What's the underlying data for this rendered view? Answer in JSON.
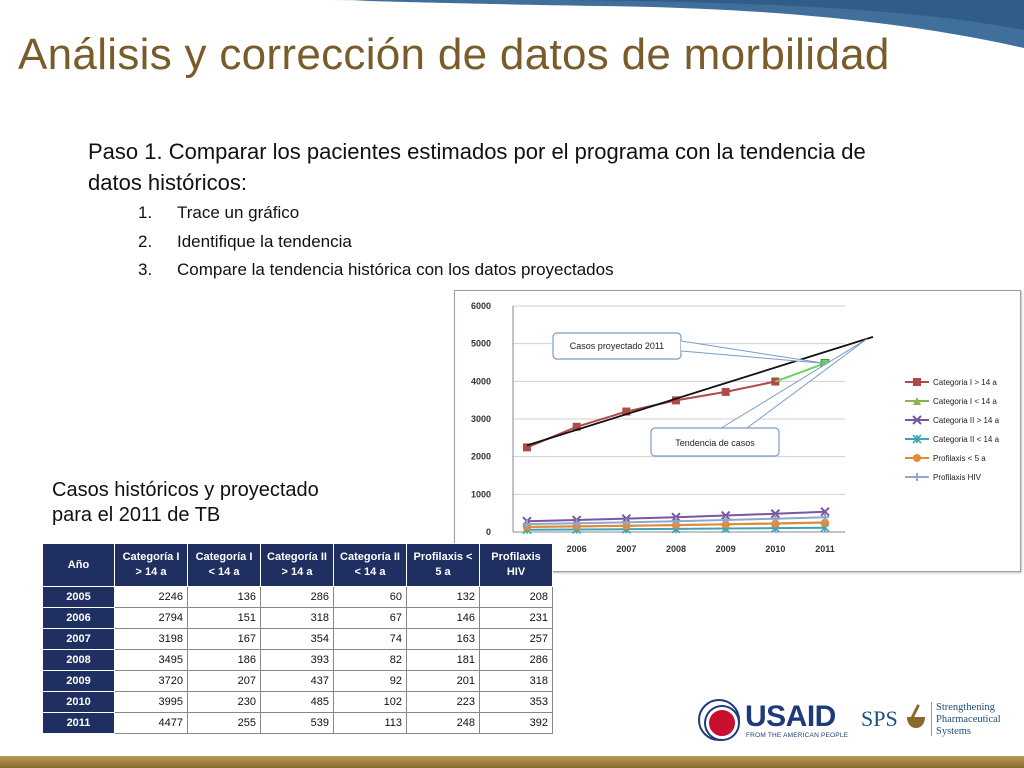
{
  "slide": {
    "title": "Análisis y corrección de datos de morbilidad",
    "intro": "Paso 1. Comparar los pacientes estimados por el programa con la tendencia de datos históricos:",
    "steps": [
      {
        "num": "1.",
        "text": "Trace un gráfico"
      },
      {
        "num": "2.",
        "text": "Identifique la tendencia"
      },
      {
        "num": "3.",
        "text": "Compare la tendencia histórica con los datos proyectados"
      }
    ],
    "table_caption": "Casos históricos y proyectado\npara el 2011 de TB"
  },
  "table": {
    "headers": [
      "Año",
      "Categoría I > 14 a",
      "Categoría I < 14 a",
      "Categoría II > 14 a",
      "Categoría II < 14 a",
      "Profilaxis < 5 a",
      "Profilaxis HIV"
    ],
    "rows": [
      [
        "2005",
        "2246",
        "136",
        "286",
        "60",
        "132",
        "208"
      ],
      [
        "2006",
        "2794",
        "151",
        "318",
        "67",
        "146",
        "231"
      ],
      [
        "2007",
        "3198",
        "167",
        "354",
        "74",
        "163",
        "257"
      ],
      [
        "2008",
        "3495",
        "186",
        "393",
        "82",
        "181",
        "286"
      ],
      [
        "2009",
        "3720",
        "207",
        "437",
        "92",
        "201",
        "318"
      ],
      [
        "2010",
        "3995",
        "230",
        "485",
        "102",
        "223",
        "353"
      ],
      [
        "2011",
        "4477",
        "255",
        "539",
        "113",
        "248",
        "392"
      ]
    ]
  },
  "chart_data": {
    "type": "line",
    "x": [
      "2005",
      "2006",
      "2007",
      "2008",
      "2009",
      "2010",
      "2011"
    ],
    "ylim": [
      0,
      6000
    ],
    "yticks": [
      0,
      1000,
      2000,
      3000,
      4000,
      5000,
      6000
    ],
    "grid": true,
    "legend_position": "right",
    "series": [
      {
        "name": "Categoria I > 14 a",
        "values": [
          2246,
          2794,
          3198,
          3495,
          3720,
          3995,
          4477
        ],
        "color": "#b04a4a",
        "marker": "square"
      },
      {
        "name": "Categoria I < 14 a",
        "values": [
          136,
          151,
          167,
          186,
          207,
          230,
          255
        ],
        "color": "#8fb14e",
        "marker": "triangle"
      },
      {
        "name": "Categoria II > 14 a",
        "values": [
          286,
          318,
          354,
          393,
          437,
          485,
          539
        ],
        "color": "#7a55a0",
        "marker": "x"
      },
      {
        "name": "Categoria II < 14 a",
        "values": [
          60,
          67,
          74,
          82,
          92,
          102,
          113
        ],
        "color": "#3fa3b8",
        "marker": "star"
      },
      {
        "name": "Profilaxis < 5 a",
        "values": [
          132,
          146,
          163,
          181,
          201,
          223,
          248
        ],
        "color": "#e08a3a",
        "marker": "circle"
      },
      {
        "name": "Profilaxis HIV",
        "values": [
          208,
          231,
          257,
          286,
          318,
          353,
          392
        ],
        "color": "#8fa8d0",
        "marker": "plus"
      }
    ],
    "projected_point": {
      "x": "2011",
      "value": 4477,
      "color": "#6cd35a"
    },
    "trend_line": {
      "from": {
        "x": "2005",
        "value": 2300
      },
      "to": {
        "x": "2011",
        "value": 4780
      },
      "color": "#111111"
    },
    "annotations": [
      {
        "text": "Casos proyectado 2011",
        "target": "projected_point"
      },
      {
        "text": "Tendencia de casos",
        "target": "trend_line"
      }
    ]
  },
  "logos": {
    "usaid_word": "USAID",
    "usaid_tagline": "FROM THE AMERICAN PEOPLE",
    "sps_word": "SPS",
    "sps_text": "Strengthening\nPharmaceutical\nSystems"
  },
  "colors": {
    "title": "#7a5c2a",
    "table_header": "#1f2f62",
    "wave": "#3f6f9a",
    "bottom_bar": "#a9863f"
  }
}
